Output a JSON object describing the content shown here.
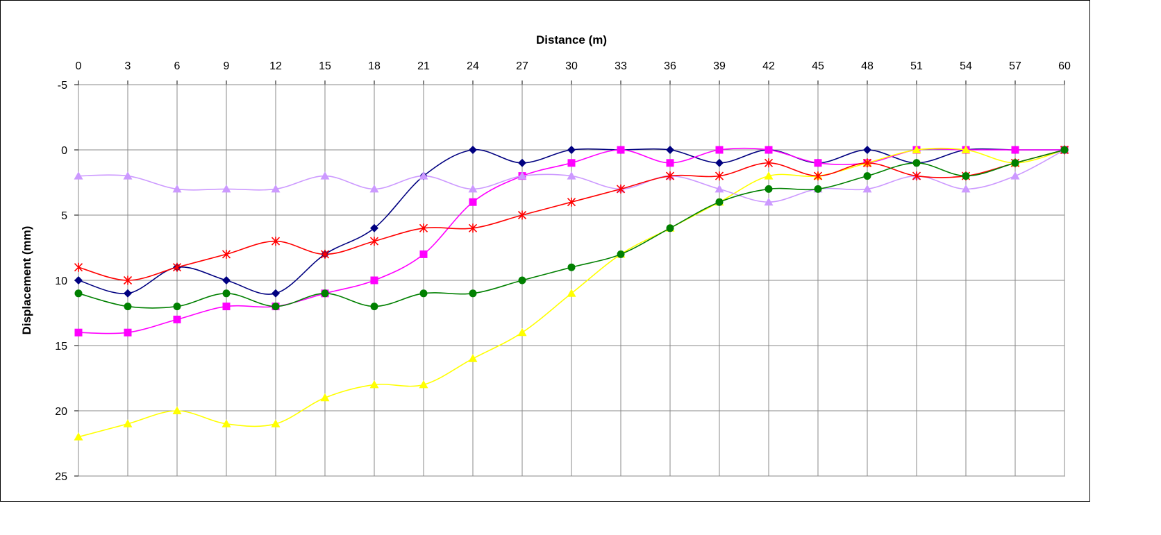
{
  "chart_data": {
    "type": "line",
    "title": "",
    "xlabel": "Distance (m)",
    "ylabel": "Displacement (mm)",
    "x": [
      0,
      3,
      6,
      9,
      12,
      15,
      18,
      21,
      24,
      27,
      30,
      33,
      36,
      39,
      42,
      45,
      48,
      51,
      54,
      57,
      60
    ],
    "xlim": [
      0,
      60
    ],
    "ylim": [
      -5,
      25
    ],
    "y_inverted": true,
    "x_axis_position": "top",
    "yticks": [
      -5,
      0,
      5,
      10,
      15,
      20,
      25
    ],
    "grid": true,
    "legend": "none",
    "series": [
      {
        "color": "#000080",
        "marker": "diamond",
        "values": [
          10,
          11,
          9,
          10,
          11,
          8,
          6,
          2,
          0,
          1,
          0,
          0,
          0,
          1,
          0,
          1,
          0,
          1,
          0,
          0,
          0
        ]
      },
      {
        "color": "#FF00FF",
        "marker": "square",
        "values": [
          14,
          14,
          13,
          12,
          12,
          11,
          10,
          8,
          4,
          2,
          1,
          0,
          1,
          0,
          0,
          1,
          1,
          0,
          0,
          0,
          0
        ]
      },
      {
        "color": "#FFFF00",
        "marker": "triangle",
        "values": [
          22,
          21,
          20,
          21,
          21,
          19,
          18,
          18,
          16,
          14,
          11,
          8,
          6,
          4,
          2,
          2,
          1,
          0,
          0,
          1,
          0
        ]
      },
      {
        "color": "#CC99FF",
        "marker": "triangle",
        "values": [
          2,
          2,
          3,
          3,
          3,
          2,
          3,
          2,
          3,
          2,
          2,
          3,
          2,
          3,
          4,
          3,
          3,
          2,
          3,
          2,
          0
        ]
      },
      {
        "color": "#FF0000",
        "marker": "star",
        "values": [
          9,
          10,
          9,
          8,
          7,
          8,
          7,
          6,
          6,
          5,
          4,
          3,
          2,
          2,
          1,
          2,
          1,
          2,
          2,
          1,
          0
        ]
      },
      {
        "color": "#008000",
        "marker": "circle",
        "values": [
          11,
          12,
          12,
          11,
          12,
          11,
          12,
          11,
          11,
          10,
          9,
          8,
          6,
          4,
          3,
          3,
          2,
          1,
          2,
          1,
          0
        ]
      }
    ]
  }
}
